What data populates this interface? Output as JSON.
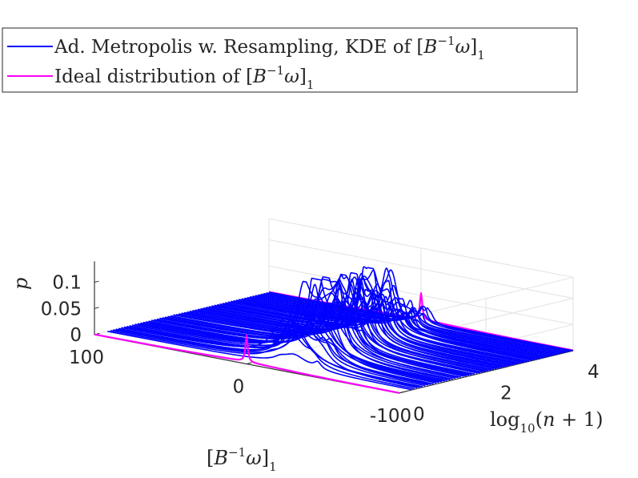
{
  "chart_data": {
    "type": "line",
    "title": "",
    "view": "3d",
    "xlabel": "[B^-1 ω]_1",
    "ylabel": "log10(n + 1)",
    "zlabel": "p",
    "xlim": [
      -100,
      100
    ],
    "ylim": [
      0,
      4
    ],
    "zlim": [
      0,
      0.14
    ],
    "x_ticks": [
      "100",
      "0",
      "-100"
    ],
    "y_ticks": [
      "0",
      "2",
      "4"
    ],
    "z_ticks": [
      "0",
      "0.05",
      "0.1"
    ],
    "grid": true,
    "legend_position": "top-left",
    "legend": [
      {
        "label": "Ad. Metropolis w. Resampling, KDE of [B^-1 ω]_1",
        "color": "#0000ff"
      },
      {
        "label": "Ideal distribution of [B^-1 ω]_1",
        "color": "#ff00ff"
      }
    ],
    "series": [
      {
        "name": "Ad. Metropolis w. Resampling, KDE of [B^-1 ω]_1",
        "color": "#0000ff",
        "kind": "kde_per_iteration",
        "n_curves": 60,
        "log10_n_plus_1_range": [
          0.3,
          4.0
        ],
        "peak_density_range": [
          0.025,
          0.13
        ],
        "center_range": [
          -20,
          0
        ]
      },
      {
        "name": "Ideal distribution of [B^-1 ω]_1",
        "color": "#ff00ff",
        "kind": "cauchy",
        "location": 0,
        "peak_density": 0.05,
        "drawn_at_log10_n_plus_1": [
          0,
          4
        ]
      }
    ]
  }
}
